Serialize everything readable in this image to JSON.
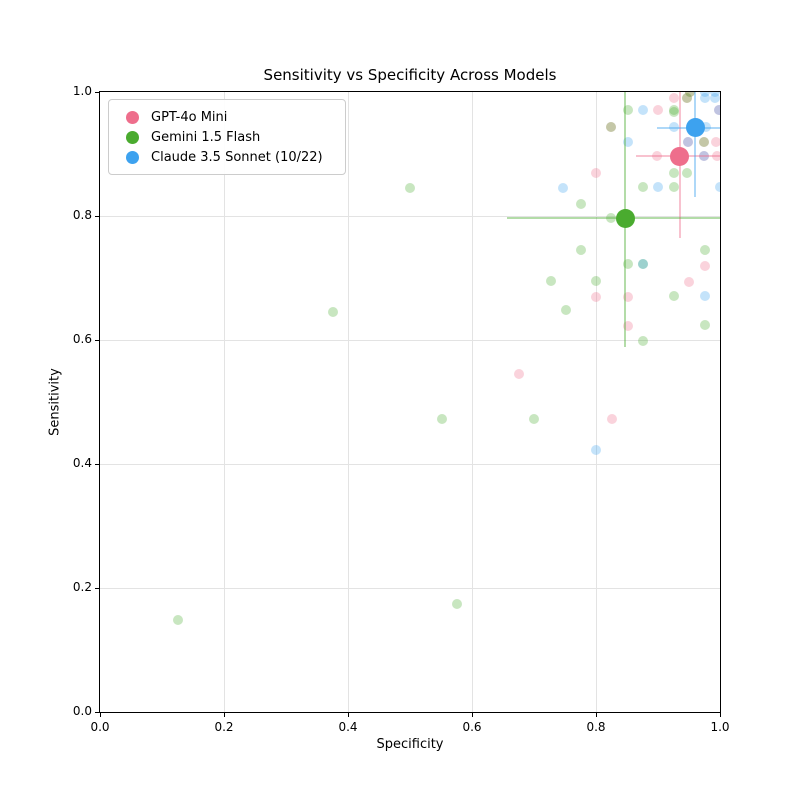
{
  "chart_data": {
    "type": "scatter",
    "title": "Sensitivity vs Specificity Across Models",
    "xlabel": "Specificity",
    "ylabel": "Sensitivity",
    "xlim": [
      0.0,
      1.0
    ],
    "ylim": [
      0.0,
      1.0
    ],
    "xticks": [
      "0.0",
      "0.2",
      "0.4",
      "0.6",
      "0.8",
      "1.0"
    ],
    "yticks": [
      "0.0",
      "0.2",
      "0.4",
      "0.6",
      "0.8",
      "1.0"
    ],
    "grid": true,
    "legend_position": "upper left",
    "point_alpha": 0.3,
    "errorbar_alpha": 0.42,
    "series": [
      {
        "name": "GPT-4o Mini",
        "color": "#ee6e8c",
        "mean": {
          "x": 0.935,
          "y": 0.896
        },
        "x_ci": [
          0.864,
          1.0
        ],
        "y_ci": [
          0.764,
          1.0
        ],
        "points": [
          [
            0.675,
            0.545
          ],
          [
            0.8,
            0.87
          ],
          [
            0.8,
            0.67
          ],
          [
            0.824,
            0.943
          ],
          [
            0.825,
            0.472
          ],
          [
            0.852,
            0.67
          ],
          [
            0.852,
            0.622
          ],
          [
            0.899,
            0.896
          ],
          [
            0.9,
            0.971
          ],
          [
            0.925,
            0.99
          ],
          [
            0.947,
            0.99
          ],
          [
            0.948,
            0.92
          ],
          [
            0.95,
            0.694
          ],
          [
            0.952,
            1.0
          ],
          [
            0.974,
            0.92
          ],
          [
            0.974,
            0.896
          ],
          [
            0.976,
            0.72
          ],
          [
            0.994,
            0.92
          ],
          [
            0.995,
            0.896
          ],
          [
            0.998,
            0.971
          ]
        ]
      },
      {
        "name": "Gemini 1.5 Flash",
        "color": "#4aab2f",
        "mean": {
          "x": 0.847,
          "y": 0.796
        },
        "x_ci": [
          0.656,
          1.0
        ],
        "y_ci": [
          0.589,
          1.0
        ],
        "points": [
          [
            0.126,
            0.148
          ],
          [
            0.376,
            0.645
          ],
          [
            0.5,
            0.845
          ],
          [
            0.551,
            0.472
          ],
          [
            0.576,
            0.174
          ],
          [
            0.7,
            0.472
          ],
          [
            0.727,
            0.695
          ],
          [
            0.751,
            0.648
          ],
          [
            0.776,
            0.82
          ],
          [
            0.776,
            0.745
          ],
          [
            0.8,
            0.695
          ],
          [
            0.824,
            0.943
          ],
          [
            0.824,
            0.796
          ],
          [
            0.851,
            0.971
          ],
          [
            0.851,
            0.723
          ],
          [
            0.876,
            0.847
          ],
          [
            0.876,
            0.722
          ],
          [
            0.876,
            0.598
          ],
          [
            0.926,
            0.971
          ],
          [
            0.926,
            0.968
          ],
          [
            0.926,
            0.87
          ],
          [
            0.926,
            0.847
          ],
          [
            0.926,
            0.671
          ],
          [
            0.947,
            0.99
          ],
          [
            0.947,
            0.87
          ],
          [
            0.952,
            1.0
          ],
          [
            0.974,
            0.92
          ],
          [
            0.976,
            0.745
          ],
          [
            0.976,
            0.625
          ]
        ]
      },
      {
        "name": "Claude 3.5 Sonnet (10/22)",
        "color": "#3da2ef",
        "mean": {
          "x": 0.96,
          "y": 0.942
        },
        "x_ci": [
          0.899,
          1.0
        ],
        "y_ci": [
          0.831,
          1.0
        ],
        "points": [
          [
            0.747,
            0.845
          ],
          [
            0.8,
            0.422
          ],
          [
            0.851,
            0.92
          ],
          [
            0.876,
            0.971
          ],
          [
            0.876,
            0.722
          ],
          [
            0.9,
            0.847
          ],
          [
            0.926,
            0.943
          ],
          [
            0.948,
            0.92
          ],
          [
            0.974,
            0.896
          ],
          [
            0.975,
            0.99
          ],
          [
            0.975,
            1.0
          ],
          [
            0.976,
            0.671
          ],
          [
            0.977,
            0.943
          ],
          [
            0.992,
            0.99
          ],
          [
            0.992,
            1.0
          ],
          [
            0.998,
            0.971
          ],
          [
            1.0,
            0.847
          ]
        ]
      }
    ]
  },
  "legend": {
    "items": [
      {
        "label": "GPT-4o Mini",
        "color": "#ee6e8c"
      },
      {
        "label": "Gemini 1.5 Flash",
        "color": "#4aab2f"
      },
      {
        "label": "Claude 3.5 Sonnet (10/22)",
        "color": "#3da2ef"
      }
    ]
  }
}
